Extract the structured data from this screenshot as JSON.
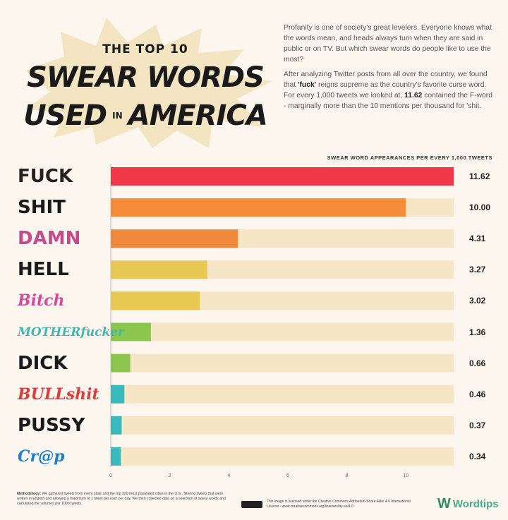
{
  "title": {
    "line1": "THE TOP 10",
    "line2": "SWEAR WORDS",
    "line3a": "USED",
    "line3b": "IN",
    "line3c": "AMERICA"
  },
  "intro": {
    "p1": "Profanity is one of society's great levelers. Everyone knows what the words mean, and heads always turn when they are said in public or on TV. But which swear words do people like to use the most?",
    "p2a": "After analyzing Twitter posts from all over the country, we found that ",
    "p2b": "'fuck'",
    "p2c": " reigns supreme as the country's favorite curse word. For every 1,000 tweets we looked at, ",
    "p2d": "11.62",
    "p2e": " contained the F-word - marginally more than the 10 mentions per thousand for 'shit."
  },
  "chart_data": {
    "type": "bar",
    "orientation": "horizontal",
    "xlabel": "SWEAR WORD APPEARANCES PER EVERY 1,000 TWEETS",
    "categories": [
      "FUCK",
      "SHIT",
      "DAMN",
      "HELL",
      "Bitch",
      "MOTHERfucker",
      "DICK",
      "BULLshit",
      "PUSSY",
      "Cr@p"
    ],
    "values": [
      11.62,
      10.0,
      4.31,
      3.27,
      3.02,
      1.36,
      0.66,
      0.46,
      0.37,
      0.34
    ],
    "value_labels": [
      "11.62",
      "10.00",
      "4.31",
      "3.27",
      "3.02",
      "1.36",
      "0.66",
      "0.46",
      "0.37",
      "0.34"
    ],
    "xlim": [
      0,
      11.62
    ],
    "xticks": [
      0,
      2,
      4,
      6,
      8,
      10
    ],
    "colors": [
      "#f0384a",
      "#f58c3a",
      "#f0893c",
      "#e6c852",
      "#e6c852",
      "#8cc64f",
      "#8cc64f",
      "#38b9bd",
      "#38b9bd",
      "#38b9bd"
    ],
    "track_color": "#f5e6c6",
    "word_colors": [
      "#2a1f1f",
      "#1a1a1a",
      "#c84a8a",
      "#1a1a1a",
      "#d44a9c",
      "#3fb8b0",
      "#1a1a1a",
      "#e03a3a",
      "#1a1a1a",
      "#1f7fd0"
    ],
    "grid": false
  },
  "footer": {
    "method_label": "Methodology:",
    "method": " We gathered tweets from every state and the top 320 most populated cities in the U.S., filtering tweets that were written in English and allowing a maximum of 1 tweet per user per day. We then collected data on a selection of swear words and calculated the volumes per 1000 tweets.",
    "license": "This image is licensed under the Creative Commons Attribution-Share Alike 4.0 International License - www.creativecommons.org/licenses/by-sa/4.0",
    "logo": "Wordtips",
    "logo_mark": "W"
  }
}
